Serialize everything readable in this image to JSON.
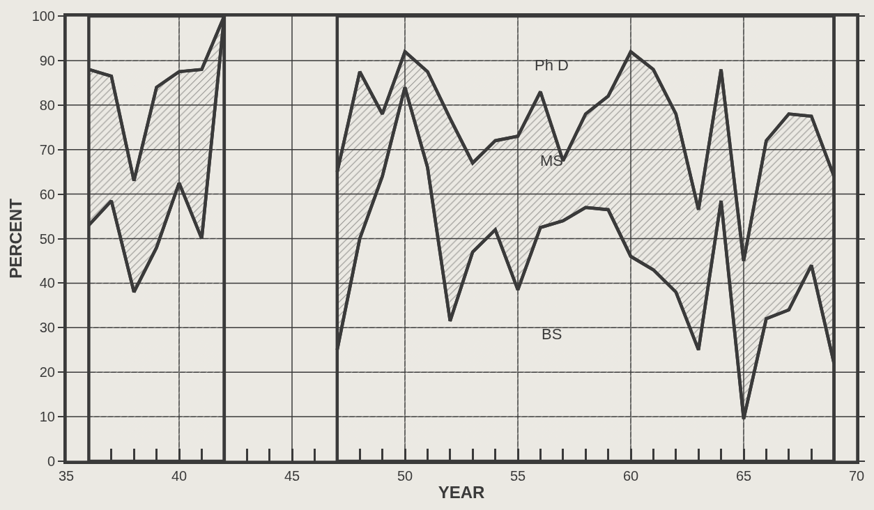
{
  "chart_data": {
    "type": "area",
    "stacked": true,
    "xlabel": "YEAR",
    "ylabel": "PERCENT",
    "x": [
      36,
      37,
      38,
      39,
      40,
      41,
      42,
      43,
      44,
      45,
      46,
      47,
      48,
      49,
      50,
      51,
      52,
      53,
      54,
      55,
      56,
      57,
      58,
      59,
      60,
      61,
      62,
      63,
      64,
      65,
      66,
      67,
      68,
      69
    ],
    "series": [
      {
        "name": "BS",
        "color": "#ebe9e3",
        "values": [
          53,
          58.5,
          38,
          48,
          62.5,
          50,
          100,
          null,
          null,
          null,
          null,
          25,
          50,
          64,
          84,
          66,
          31.5,
          47,
          52,
          38.5,
          52.5,
          54,
          57,
          56.5,
          46,
          43,
          38,
          25,
          58.5,
          9.5,
          32,
          34,
          44,
          22
        ]
      },
      {
        "name": "MS",
        "color": "#3a3a3a",
        "values": [
          35,
          28,
          25,
          36,
          25,
          38,
          0,
          null,
          null,
          null,
          null,
          40,
          37.5,
          14,
          8,
          21.5,
          45.5,
          20,
          20,
          34.5,
          30.5,
          13.5,
          21,
          25.5,
          46,
          45,
          40,
          31.5,
          29.5,
          35.5,
          40,
          44,
          33.5,
          42
        ]
      },
      {
        "name": "Ph D",
        "color": "#ebe9e3",
        "values": [
          12,
          13.5,
          37,
          16,
          12.5,
          12,
          0,
          null,
          null,
          null,
          null,
          35,
          12.5,
          22,
          8,
          12.5,
          23,
          33,
          28,
          27,
          17,
          32.5,
          22,
          18,
          8,
          12,
          22,
          43.5,
          12,
          55,
          28,
          22,
          22.5,
          36
        ]
      }
    ],
    "xlim": [
      35,
      70
    ],
    "xticks": [
      35,
      40,
      45,
      50,
      55,
      60,
      65,
      70
    ],
    "ylim": [
      0,
      100
    ],
    "yticks": [
      0,
      10,
      20,
      30,
      40,
      50,
      60,
      70,
      80,
      90,
      100
    ],
    "grid": true
  }
}
